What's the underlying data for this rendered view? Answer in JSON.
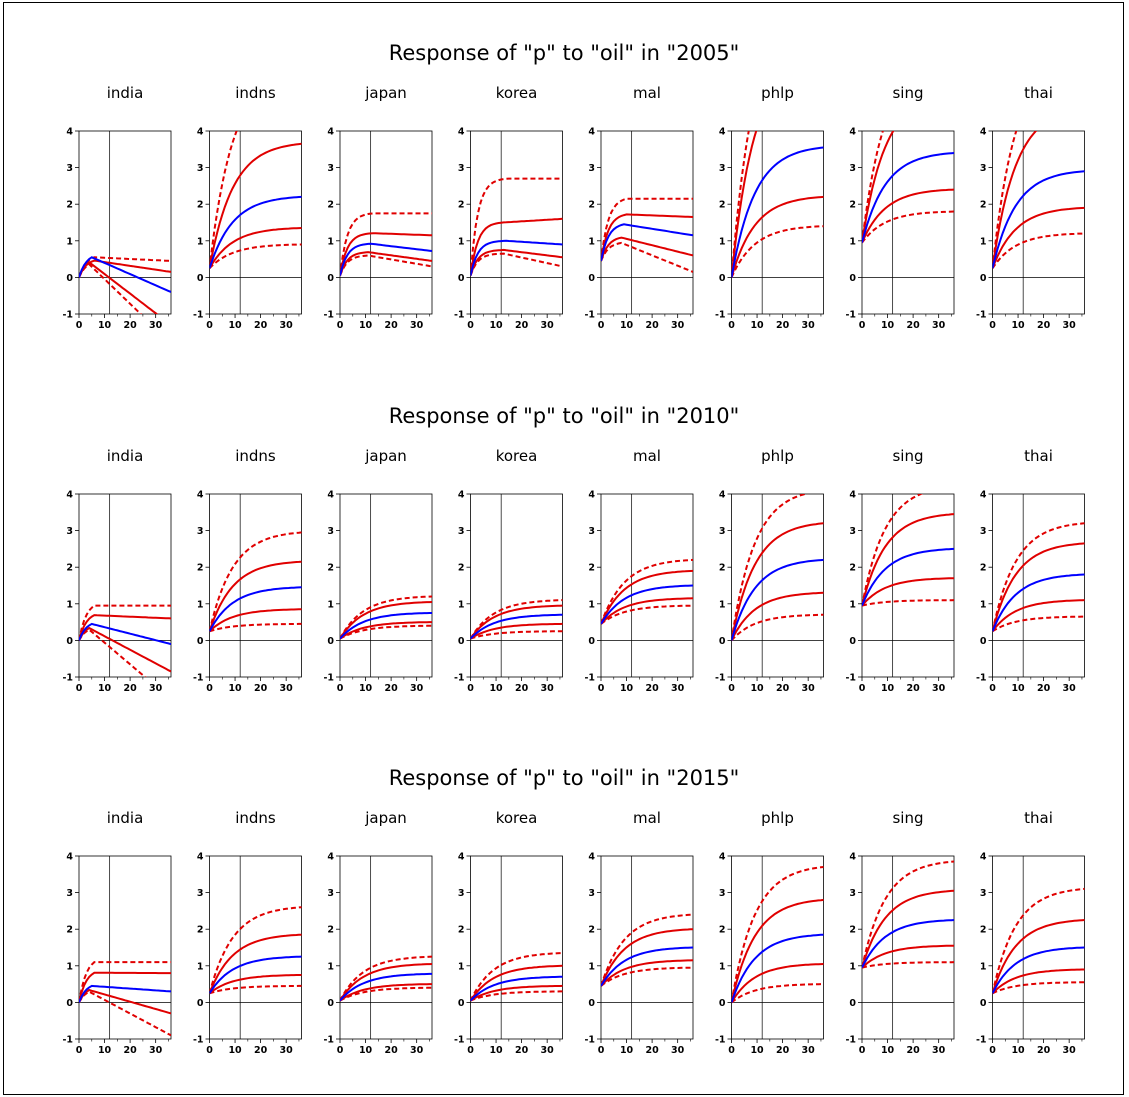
{
  "colors": {
    "irf": "#0000ff",
    "band": "#e00000",
    "axis": "#000000"
  },
  "chart_data": [
    {
      "type": "line",
      "title": "Response of \"p\" to \"oil\" in \"2005\"",
      "xticks": [
        0,
        10,
        20,
        30
      ],
      "yticks": [
        -1,
        0,
        1,
        2,
        3,
        4
      ],
      "xlim": [
        0,
        36
      ],
      "ylim": [
        -1,
        4
      ],
      "vline_x": 12,
      "hline_y": 0,
      "panels": [
        {
          "name": "india",
          "start": 0,
          "peak": 0.55,
          "peak_at": 5,
          "end": -0.4,
          "upper_inner": 0.15,
          "upper_outer": 0.45,
          "lower_inner": -1.3,
          "lower_outer": -1.8
        },
        {
          "name": "indns",
          "start": 0.25,
          "peak": 2.2,
          "peak_at": 36,
          "end": 2.2,
          "upper_inner": 3.65,
          "upper_outer": 5.6,
          "lower_inner": 1.35,
          "lower_outer": 0.9
        },
        {
          "name": "japan",
          "start": 0.05,
          "peak": 0.92,
          "peak_at": 12,
          "end": 0.72,
          "upper_inner": 1.15,
          "upper_outer": 1.75,
          "lower_inner": 0.45,
          "lower_outer": 0.3
        },
        {
          "name": "korea",
          "start": 0.05,
          "peak": 1.0,
          "peak_at": 14,
          "end": 0.9,
          "upper_inner": 1.6,
          "upper_outer": 2.7,
          "lower_inner": 0.55,
          "lower_outer": 0.3
        },
        {
          "name": "mal",
          "start": 0.45,
          "peak": 1.45,
          "peak_at": 9,
          "end": 1.15,
          "upper_inner": 1.65,
          "upper_outer": 2.15,
          "lower_inner": 0.6,
          "lower_outer": 0.15
        },
        {
          "name": "phlp",
          "start": 0,
          "peak": 3.55,
          "peak_at": 36,
          "end": 3.55,
          "upper_inner": 6.0,
          "upper_outer": 7.5,
          "lower_inner": 2.2,
          "lower_outer": 1.4
        },
        {
          "name": "sing",
          "start": 0.95,
          "peak": 3.4,
          "peak_at": 36,
          "end": 3.4,
          "upper_inner": 5.0,
          "upper_outer": 6.0,
          "lower_inner": 2.4,
          "lower_outer": 1.8
        },
        {
          "name": "thai",
          "start": 0.25,
          "peak": 2.9,
          "peak_at": 36,
          "end": 2.9,
          "upper_inner": 4.6,
          "upper_outer": 6.0,
          "lower_inner": 1.9,
          "lower_outer": 1.2
        }
      ]
    },
    {
      "type": "line",
      "title": "Response of \"p\" to \"oil\" in \"2010\"",
      "xticks": [
        0,
        10,
        20,
        30
      ],
      "yticks": [
        -1,
        0,
        1,
        2,
        3,
        4
      ],
      "xlim": [
        0,
        36
      ],
      "ylim": [
        -1,
        4
      ],
      "vline_x": 12,
      "hline_y": 0,
      "panels": [
        {
          "name": "india",
          "start": 0,
          "peak": 0.45,
          "peak_at": 5,
          "end": -0.1,
          "upper_inner": 0.6,
          "upper_outer": 0.95,
          "lower_inner": -0.85,
          "lower_outer": -1.6
        },
        {
          "name": "indns",
          "start": 0.25,
          "peak": 1.45,
          "peak_at": 36,
          "end": 1.45,
          "upper_inner": 2.15,
          "upper_outer": 2.95,
          "lower_inner": 0.85,
          "lower_outer": 0.45
        },
        {
          "name": "japan",
          "start": 0.05,
          "peak": 0.75,
          "peak_at": 36,
          "end": 0.75,
          "upper_inner": 1.05,
          "upper_outer": 1.2,
          "lower_inner": 0.5,
          "lower_outer": 0.4
        },
        {
          "name": "korea",
          "start": 0.05,
          "peak": 0.7,
          "peak_at": 36,
          "end": 0.7,
          "upper_inner": 0.95,
          "upper_outer": 1.1,
          "lower_inner": 0.45,
          "lower_outer": 0.25
        },
        {
          "name": "mal",
          "start": 0.45,
          "peak": 1.5,
          "peak_at": 36,
          "end": 1.5,
          "upper_inner": 1.9,
          "upper_outer": 2.2,
          "lower_inner": 1.15,
          "lower_outer": 0.95
        },
        {
          "name": "phlp",
          "start": 0,
          "peak": 2.2,
          "peak_at": 36,
          "end": 2.2,
          "upper_inner": 3.2,
          "upper_outer": 4.1,
          "lower_inner": 1.3,
          "lower_outer": 0.7
        },
        {
          "name": "sing",
          "start": 0.95,
          "peak": 2.5,
          "peak_at": 36,
          "end": 2.5,
          "upper_inner": 3.45,
          "upper_outer": 4.2,
          "lower_inner": 1.7,
          "lower_outer": 1.1
        },
        {
          "name": "thai",
          "start": 0.25,
          "peak": 1.8,
          "peak_at": 36,
          "end": 1.8,
          "upper_inner": 2.65,
          "upper_outer": 3.2,
          "lower_inner": 1.1,
          "lower_outer": 0.65
        }
      ]
    },
    {
      "type": "line",
      "title": "Response of \"p\" to \"oil\" in \"2015\"",
      "xticks": [
        0,
        10,
        20,
        30
      ],
      "yticks": [
        -1,
        0,
        1,
        2,
        3,
        4
      ],
      "xlim": [
        0,
        36
      ],
      "ylim": [
        -1,
        4
      ],
      "vline_x": 12,
      "hline_y": 0,
      "panels": [
        {
          "name": "india",
          "start": 0,
          "peak": 0.45,
          "peak_at": 5,
          "end": 0.3,
          "upper_inner": 0.8,
          "upper_outer": 1.1,
          "lower_inner": -0.3,
          "lower_outer": -0.9
        },
        {
          "name": "indns",
          "start": 0.25,
          "peak": 1.25,
          "peak_at": 36,
          "end": 1.25,
          "upper_inner": 1.85,
          "upper_outer": 2.6,
          "lower_inner": 0.75,
          "lower_outer": 0.45
        },
        {
          "name": "japan",
          "start": 0.05,
          "peak": 0.78,
          "peak_at": 36,
          "end": 0.78,
          "upper_inner": 1.05,
          "upper_outer": 1.25,
          "lower_inner": 0.5,
          "lower_outer": 0.4
        },
        {
          "name": "korea",
          "start": 0.05,
          "peak": 0.7,
          "peak_at": 36,
          "end": 0.7,
          "upper_inner": 1.0,
          "upper_outer": 1.35,
          "lower_inner": 0.45,
          "lower_outer": 0.3
        },
        {
          "name": "mal",
          "start": 0.45,
          "peak": 1.5,
          "peak_at": 36,
          "end": 1.5,
          "upper_inner": 2.0,
          "upper_outer": 2.4,
          "lower_inner": 1.15,
          "lower_outer": 0.95
        },
        {
          "name": "phlp",
          "start": 0,
          "peak": 1.85,
          "peak_at": 36,
          "end": 1.85,
          "upper_inner": 2.8,
          "upper_outer": 3.7,
          "lower_inner": 1.05,
          "lower_outer": 0.5
        },
        {
          "name": "sing",
          "start": 0.95,
          "peak": 2.25,
          "peak_at": 36,
          "end": 2.25,
          "upper_inner": 3.05,
          "upper_outer": 3.85,
          "lower_inner": 1.55,
          "lower_outer": 1.1
        },
        {
          "name": "thai",
          "start": 0.25,
          "peak": 1.5,
          "peak_at": 36,
          "end": 1.5,
          "upper_inner": 2.25,
          "upper_outer": 3.1,
          "lower_inner": 0.9,
          "lower_outer": 0.55
        }
      ]
    }
  ]
}
